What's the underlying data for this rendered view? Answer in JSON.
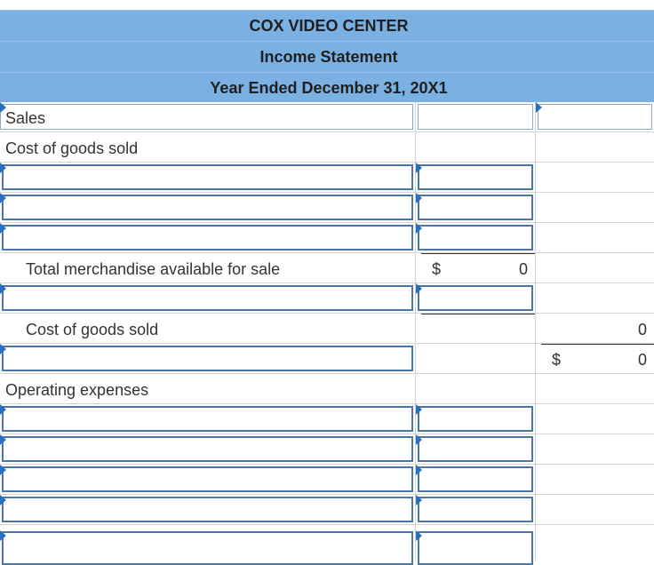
{
  "header": {
    "company": "COX VIDEO CENTER",
    "statement": "Income Statement",
    "period": "Year Ended December 31, 20X1"
  },
  "rows": {
    "sales": "Sales",
    "cogs_heading": "Cost of goods sold",
    "total_available": "Total merchandise available for sale",
    "total_available_currency": "$",
    "total_available_value": "0",
    "cogs_total": "Cost of goods sold",
    "cogs_total_value": "0",
    "gross_currency": "$",
    "gross_value": "0",
    "operating_heading": "Operating expenses"
  },
  "colors": {
    "header_bg": "#7ab0e2",
    "input_border": "#4b76a8",
    "triangle": "#2a6fbd"
  }
}
